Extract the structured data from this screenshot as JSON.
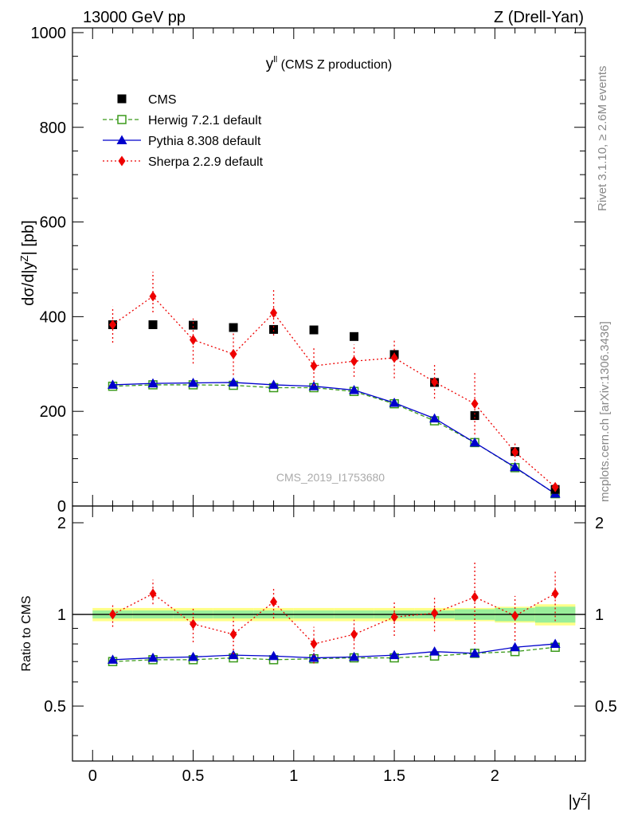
{
  "header": {
    "left": "13000 GeV pp",
    "right": "Z (Drell-Yan)"
  },
  "side_labels": {
    "rivet": "Rivet 3.1.10, ≥ 2.6M events",
    "mcplots": "mcplots.cern.ch [arXiv:1306.3436]"
  },
  "chart_data": [
    {
      "type": "scatter",
      "panel": "main",
      "title_main": "y",
      "title_sup": "ll",
      "title_rest": " (CMS Z production)",
      "ylabel_main": "dσ/d|y",
      "ylabel_sup": "Z",
      "ylabel_rest": "| [pb]",
      "watermark": "CMS_2019_I1753680",
      "xlim": [
        -0.1,
        2.45
      ],
      "ylim": [
        0,
        1010
      ],
      "yticks": [
        0,
        200,
        400,
        600,
        800,
        1000
      ],
      "ytick_labels": [
        "0",
        "200",
        "400",
        "600",
        "800",
        "1000"
      ],
      "x": [
        0.1,
        0.3,
        0.5,
        0.7,
        0.9,
        1.1,
        1.3,
        1.5,
        1.7,
        1.9,
        2.1,
        2.3
      ],
      "series": [
        {
          "name": "CMS",
          "color": "#000000",
          "marker": "square",
          "line": "none",
          "values": [
            383,
            383,
            382,
            377,
            373,
            372,
            358,
            320,
            261,
            191,
            115,
            35
          ]
        },
        {
          "name": "Herwig 7.2.1 default",
          "color": "#3a9a1a",
          "marker": "open-square",
          "line": "dashed",
          "values": [
            253,
            256,
            256,
            255,
            250,
            250,
            242,
            216,
            180,
            134,
            81,
            26
          ]
        },
        {
          "name": "Pythia 8.308 default",
          "color": "#0000cc",
          "marker": "triangle",
          "line": "solid",
          "values": [
            256,
            259,
            260,
            261,
            256,
            253,
            245,
            218,
            185,
            134,
            82,
            26
          ]
        },
        {
          "name": "Sherpa 2.2.9 default",
          "color": "#ee0000",
          "marker": "diamond",
          "line": "dotted",
          "values": [
            383,
            443,
            351,
            321,
            408,
            296,
            306,
            313,
            262,
            216,
            114,
            40
          ],
          "err_low": [
            38,
            34,
            50,
            44,
            48,
            42,
            33,
            43,
            35,
            65,
            19,
            8
          ],
          "err_high": [
            38,
            52,
            45,
            45,
            48,
            40,
            35,
            40,
            37,
            67,
            18,
            8
          ]
        }
      ]
    },
    {
      "type": "scatter",
      "panel": "ratio",
      "ylabel": "Ratio to CMS",
      "xlabel_main": "|y",
      "xlabel_sup": "Z",
      "xlabel_rest": "|",
      "xlim": [
        -0.1,
        2.45
      ],
      "ylim": [
        0.33,
        2.27
      ],
      "yticks": [
        0.5,
        1,
        2
      ],
      "ytick_labels": [
        "0.5",
        "1",
        "2"
      ],
      "xticks": [
        0,
        0.5,
        1,
        1.5,
        2
      ],
      "xtick_labels": [
        "0",
        "0.5",
        "1",
        "1.5",
        "2"
      ],
      "x": [
        0.1,
        0.3,
        0.5,
        0.7,
        0.9,
        1.1,
        1.3,
        1.5,
        1.7,
        1.9,
        2.1,
        2.3
      ],
      "band_outer": [
        0.05,
        0.05,
        0.05,
        0.05,
        0.05,
        0.05,
        0.05,
        0.05,
        0.05,
        0.05,
        0.06,
        0.08
      ],
      "band_inner": [
        0.03,
        0.03,
        0.03,
        0.03,
        0.03,
        0.03,
        0.03,
        0.03,
        0.03,
        0.04,
        0.05,
        0.06
      ],
      "series": [
        {
          "name": "Herwig 7.2.1 default",
          "color": "#3a9a1a",
          "marker": "open-square",
          "line": "dashed",
          "values": [
            0.7,
            0.71,
            0.71,
            0.72,
            0.71,
            0.715,
            0.72,
            0.72,
            0.73,
            0.745,
            0.755,
            0.78
          ]
        },
        {
          "name": "Pythia 8.308 default",
          "color": "#0000cc",
          "marker": "triangle",
          "line": "solid",
          "values": [
            0.71,
            0.72,
            0.725,
            0.735,
            0.73,
            0.72,
            0.725,
            0.735,
            0.755,
            0.745,
            0.78,
            0.8
          ]
        },
        {
          "name": "Sherpa 2.2.9 default",
          "color": "#ee0000",
          "marker": "diamond",
          "line": "dotted",
          "values": [
            1.0,
            1.17,
            0.93,
            0.86,
            1.1,
            0.8,
            0.86,
            0.98,
            1.01,
            1.14,
            0.99,
            1.17
          ],
          "err_low": [
            0.09,
            0.09,
            0.12,
            0.12,
            0.13,
            0.11,
            0.09,
            0.13,
            0.13,
            0.34,
            0.17,
            0.22
          ],
          "err_high": [
            0.09,
            0.13,
            0.12,
            0.12,
            0.13,
            0.11,
            0.1,
            0.13,
            0.14,
            0.35,
            0.16,
            0.23
          ]
        }
      ]
    }
  ]
}
